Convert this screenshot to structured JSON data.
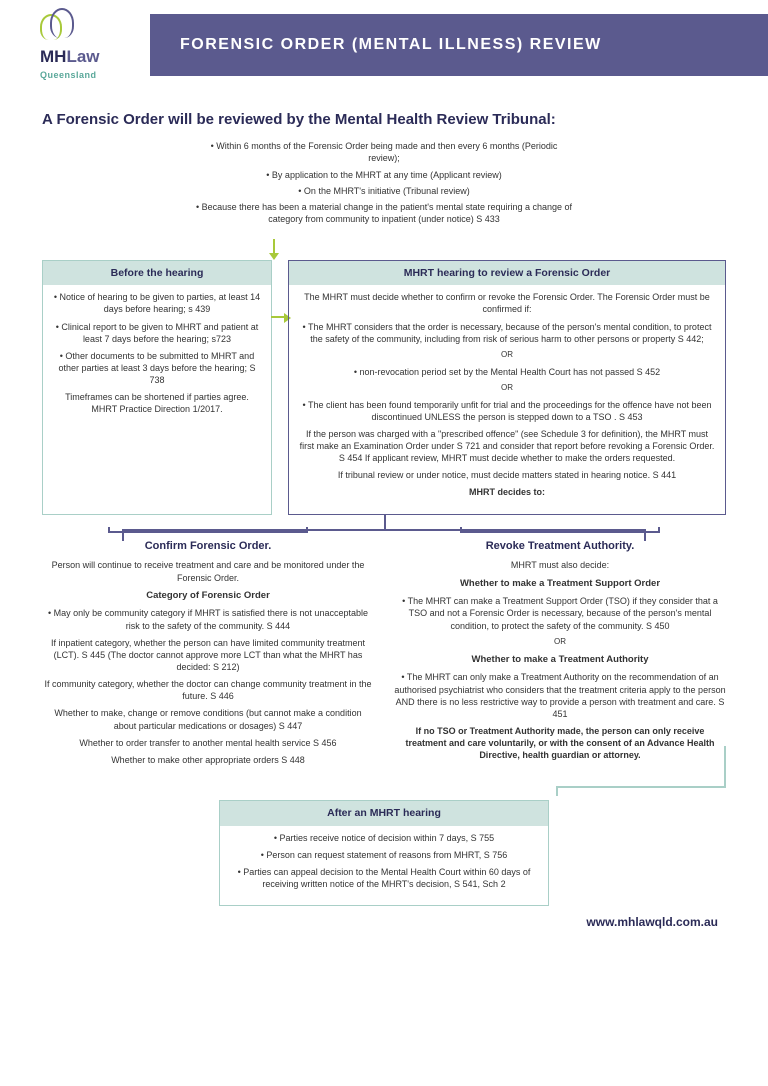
{
  "brand": {
    "name_mh": "MH",
    "name_law": "Law",
    "region": "Queensland"
  },
  "title": "FORENSIC ORDER (MENTAL ILLNESS) REVIEW",
  "subtitle": "A Forensic Order will be reviewed by the Mental Health Review Tribunal:",
  "intro": {
    "b1": "• Within 6 months of the Forensic Order being made and then every 6 months (Periodic review);",
    "b2": "• By application to the MHRT at any time (Applicant review)",
    "b3": "• On the MHRT's initiative (Tribunal review)",
    "b4": "• Because there has been a material change in the patient's mental state requiring a change of category from community to inpatient (under notice) S 433"
  },
  "before": {
    "title": "Before the hearing",
    "b1": "• Notice of hearing to be given to parties, at least 14 days before hearing; s 439",
    "b2": "• Clinical report to be given to MHRT and patient at least 7 days before the hearing; s723",
    "b3": "• Other documents to be submitted to MHRT and other parties at least 3 days before the hearing; S 738",
    "b4": "Timeframes can be shortened if parties agree. MHRT Practice Direction 1/2017."
  },
  "hearing": {
    "title": "MHRT hearing to review a Forensic Order",
    "p1": "The MHRT must decide whether to confirm or revoke the Forensic Order. The Forensic Order must be confirmed if:",
    "p2": "• The MHRT considers that the order is necessary, because of the person's mental condition, to protect the safety of the community, including from risk of serious harm to other persons or property S 442;",
    "or": "OR",
    "p3": "• non-revocation period set by the Mental Health Court has not passed S 452",
    "p4": "• The client has been found temporarily unfit for trial and the proceedings for the offence have not been discontinued UNLESS the person is stepped down to a TSO . S 453",
    "p5": "If the person was charged with a \"prescribed offence\" (see Schedule 3 for definition), the MHRT must first make an Examination Order under S 721 and consider that report before revoking a Forensic Order. S 454 If applicant review, MHRT must decide whether to make the orders requested.",
    "p6": "If tribunal review or under notice, must decide matters stated in hearing notice. S 441",
    "decides": "MHRT decides to:"
  },
  "confirm": {
    "title": "Confirm Forensic Order.",
    "desc": "Person will continue to receive treatment and care and be monitored under the Forensic Order.",
    "cat_hdr": "Category of Forensic Order",
    "p1": "• May only be community category if MHRT is satisfied there is not unacceptable risk to the safety of the community. S 444",
    "p2": "If inpatient category, whether the person can have limited community treatment (LCT). S 445 (The doctor cannot approve more LCT than what the MHRT has decided: S 212)",
    "p3": "If community category, whether the doctor can change community treatment in the future. S 446",
    "p4": "Whether to make, change or remove conditions (but cannot make a condition about particular medications or dosages) S 447",
    "p5": "Whether to order transfer to another mental health service S 456",
    "p6": "Whether to make other appropriate orders S 448"
  },
  "revoke": {
    "title": "Revoke Treatment Authority.",
    "desc": "MHRT must also decide:",
    "tso_hdr": "Whether to make a Treatment Support Order",
    "p1": "• The MHRT can make a Treatment Support Order (TSO) if they consider that a TSO and not a Forensic Order is necessary, because of the person's mental condition, to protect the safety of the community. S 450",
    "or": "OR",
    "ta_hdr": "Whether to make a Treatment Authority",
    "p2": "• The MHRT can only make a Treatment Authority on the recommendation of an authorised psychiatrist who considers that the treatment criteria apply to the person AND there is no less restrictive way to provide a person with treatment and care. S 451",
    "p3": "If no TSO or Treatment Authority made, the person can only receive treatment and care voluntarily, or with the consent of an Advance Health Directive, health guardian or attorney."
  },
  "after": {
    "title": "After an MHRT hearing",
    "b1": "• Parties receive notice of decision within 7 days, S 755",
    "b2": "• Person can request statement of reasons from MHRT, S 756",
    "b3": "• Parties can appeal decision to the Mental Health Court within 60 days of receiving written notice of the MHRT's decision, S 541, Sch 2"
  },
  "footer": "www.mhlawqld.com.au",
  "colors": {
    "band": "#5b5a8e",
    "accent": "#a8c93a",
    "teal": "#a9cfc7",
    "tealFill": "#cfe3df",
    "dark": "#2b2b57"
  }
}
